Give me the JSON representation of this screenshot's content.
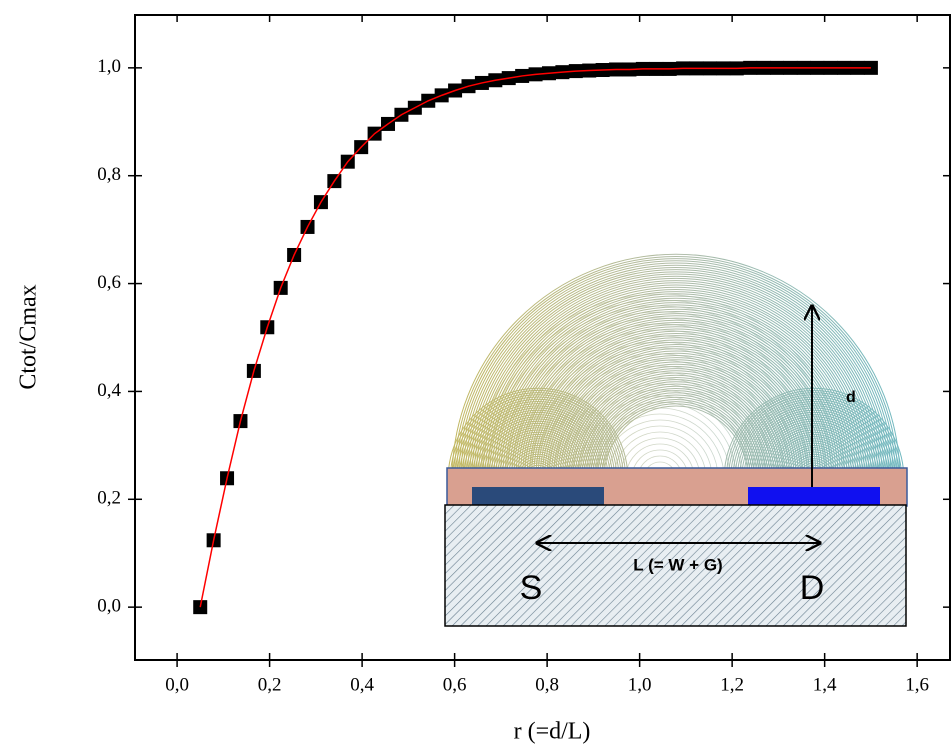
{
  "chart_data": {
    "type": "scatter",
    "x_label": "r (=d/L)",
    "y_label": "Ctot/Cmax",
    "xlim": [
      -0.091,
      1.671
    ],
    "ylim": [
      -0.098,
      1.098
    ],
    "xticks": [
      {
        "value": 0,
        "label": "0,0"
      },
      {
        "value": 0.2,
        "label": "0,2"
      },
      {
        "value": 0.4,
        "label": "0,4"
      },
      {
        "value": 0.6,
        "label": "0,6"
      },
      {
        "value": 0.8,
        "label": "0,8"
      },
      {
        "value": 1.0,
        "label": "1,0"
      },
      {
        "value": 1.2,
        "label": "1,2"
      },
      {
        "value": 1.4,
        "label": "1,4"
      },
      {
        "value": 1.6,
        "label": "1,6"
      }
    ],
    "yticks": [
      {
        "value": 0,
        "label": "0,0"
      },
      {
        "value": 0.2,
        "label": "0,2"
      },
      {
        "value": 0.4,
        "label": "0,4"
      },
      {
        "value": 0.6,
        "label": "0,6"
      },
      {
        "value": 0.8,
        "label": "0,8"
      },
      {
        "value": 1.0,
        "label": "1,0"
      }
    ],
    "x": [
      0.05,
      0.079,
      0.108,
      0.137,
      0.166,
      0.195,
      0.224,
      0.253,
      0.282,
      0.311,
      0.34,
      0.369,
      0.398,
      0.427,
      0.456,
      0.485,
      0.514,
      0.543,
      0.572,
      0.601,
      0.63,
      0.659,
      0.688,
      0.717,
      0.746,
      0.775,
      0.804,
      0.833,
      0.862,
      0.891,
      0.92,
      0.949,
      0.978,
      1.007,
      1.036,
      1.065,
      1.094,
      1.123,
      1.152,
      1.181,
      1.21,
      1.239,
      1.268,
      1.297,
      1.326,
      1.355,
      1.384,
      1.413,
      1.442,
      1.471,
      1.5
    ],
    "series": [
      {
        "color": "#000000",
        "line_color": "#ff0000",
        "values": [
          0,
          0.124,
          0.239,
          0.345,
          0.438,
          0.519,
          0.592,
          0.653,
          0.705,
          0.751,
          0.79,
          0.826,
          0.853,
          0.878,
          0.896,
          0.913,
          0.926,
          0.939,
          0.949,
          0.958,
          0.966,
          0.972,
          0.977,
          0.981,
          0.985,
          0.988,
          0.99,
          0.992,
          0.994,
          0.995,
          0.996,
          0.997,
          0.997,
          0.998,
          0.998,
          0.998,
          0.999,
          0.999,
          0.999,
          0.999,
          0.999,
          1.0,
          1.0,
          1.0,
          1.0,
          1.0,
          1.0,
          1.0,
          1.0,
          1.0,
          1.0
        ]
      }
    ],
    "inset": {
      "source": "S",
      "drain": "D",
      "length_label": "L (= W + G)",
      "height_label": "d"
    }
  }
}
